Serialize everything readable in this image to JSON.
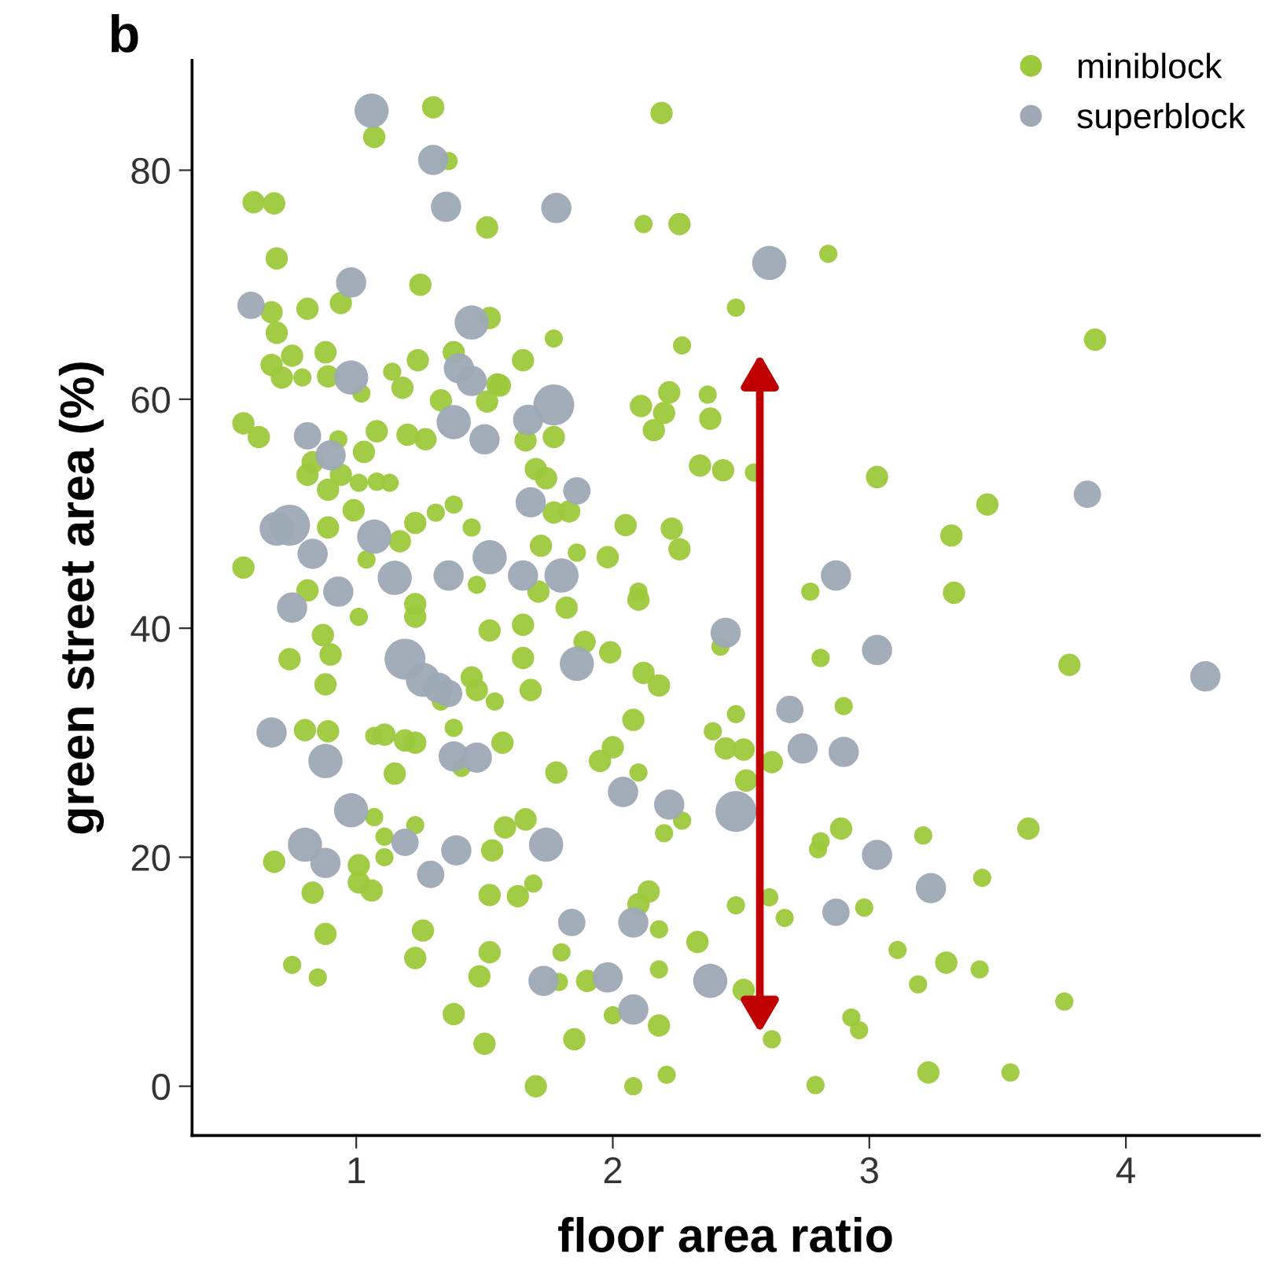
{
  "chart_data": {
    "type": "bubble",
    "xlabel": "floor area ratio",
    "ylabel": "green street area (%)",
    "annotations": [
      "b"
    ],
    "xlim": [
      0.36,
      4.52
    ],
    "ylim": [
      -4.3,
      89.6
    ],
    "xticks": [
      1,
      2,
      3,
      4
    ],
    "yticks": [
      0,
      20,
      40,
      60,
      80
    ],
    "grid": false,
    "legend": "top right",
    "relative": false,
    "series": [
      {
        "name": "miniblock",
        "color": "#9dc93c",
        "x": [
          1.3,
          1.07,
          1.36,
          0.6,
          0.68,
          1.51,
          0.69,
          1.25,
          0.67,
          0.81,
          0.94,
          0.69,
          1.52,
          0.75,
          0.88,
          0.67,
          0.71,
          0.79,
          0.89,
          1.02,
          1.14,
          1.18,
          1.24,
          1.38,
          1.55,
          1.51,
          1.33,
          1.27,
          1.2,
          1.08,
          0.93,
          0.83,
          0.81,
          0.94,
          0.89,
          1.03,
          1.01,
          1.08,
          1.13,
          0.56,
          0.62,
          0.89,
          0.99,
          1.17,
          1.23,
          1.31,
          1.38,
          1.45,
          0.56,
          1.47,
          0.81,
          1.04,
          1.01,
          1.23,
          1.23,
          0.87,
          0.9,
          0.74,
          0.88,
          1.52,
          1.45,
          1.47,
          1.54,
          1.33,
          0.8,
          0.89,
          1.07,
          1.11,
          1.19,
          1.23,
          1.38,
          1.41,
          1.57,
          1.15,
          1.07,
          1.23,
          1.11,
          0.68,
          1.01,
          1.11,
          1.53,
          1.01,
          1.06,
          0.83,
          1.52,
          0.88,
          1.26,
          1.23,
          1.52,
          1.48,
          0.75,
          0.85,
          1.38,
          1.5,
          2.19,
          2.12,
          2.26,
          2.84,
          2.48,
          1.77,
          2.27,
          1.65,
          1.56,
          1.66,
          1.77,
          2.22,
          2.37,
          2.11,
          2.2,
          2.16,
          2.38,
          1.7,
          1.74,
          1.77,
          1.83,
          2.34,
          2.43,
          2.55,
          2.05,
          2.23,
          2.26,
          1.72,
          1.86,
          1.98,
          2.1,
          2.77,
          1.71,
          1.82,
          2.1,
          1.65,
          1.89,
          1.99,
          2.42,
          1.65,
          2.12,
          2.18,
          2.81,
          1.68,
          2.08,
          2.48,
          2.39,
          2.44,
          2.51,
          2.62,
          1.95,
          2.0,
          2.1,
          1.78,
          2.52,
          2.27,
          2.2,
          1.58,
          1.66,
          2.8,
          1.63,
          1.69,
          2.14,
          2.1,
          2.18,
          2.48,
          2.61,
          2.67,
          2.33,
          1.8,
          1.9,
          1.79,
          2.18,
          2.51,
          2.0,
          2.18,
          1.85,
          2.62,
          1.7,
          2.08,
          2.21,
          2.79,
          3.88,
          3.03,
          3.46,
          3.32,
          3.33,
          3.78,
          2.9,
          2.89,
          2.81,
          3.21,
          3.62,
          3.44,
          2.98,
          3.11,
          3.3,
          3.19,
          3.43,
          3.76,
          2.93,
          2.96,
          3.23,
          3.55
        ],
        "values": [
          85.5,
          82.9,
          80.8,
          77.2,
          77.1,
          75.0,
          72.3,
          70.0,
          67.6,
          67.9,
          68.4,
          65.8,
          67.1,
          63.8,
          64.1,
          63.0,
          61.9,
          61.9,
          62.0,
          60.5,
          62.4,
          61.0,
          63.4,
          64.1,
          61.3,
          59.8,
          59.9,
          56.5,
          56.9,
          57.2,
          56.5,
          54.5,
          53.4,
          53.4,
          52.1,
          55.4,
          52.7,
          52.8,
          52.7,
          57.9,
          56.7,
          48.8,
          50.3,
          47.6,
          49.2,
          50.1,
          50.8,
          48.8,
          45.3,
          43.8,
          43.3,
          46.0,
          41.0,
          42.1,
          41.0,
          39.4,
          37.7,
          37.3,
          35.1,
          39.8,
          35.7,
          34.6,
          33.6,
          33.6,
          31.1,
          31.0,
          30.6,
          30.7,
          30.2,
          30.0,
          31.3,
          27.8,
          30.0,
          27.3,
          23.5,
          22.8,
          21.8,
          19.6,
          19.3,
          20.0,
          20.6,
          17.8,
          17.1,
          16.9,
          16.7,
          13.3,
          13.6,
          11.2,
          11.7,
          9.6,
          10.6,
          9.5,
          6.3,
          3.7,
          85.0,
          75.3,
          75.3,
          72.7,
          68.0,
          65.3,
          64.7,
          63.4,
          61.2,
          56.4,
          56.7,
          60.6,
          60.4,
          59.4,
          58.8,
          57.3,
          58.3,
          53.9,
          53.1,
          50.1,
          50.2,
          54.2,
          53.8,
          53.6,
          49.0,
          48.7,
          46.9,
          47.2,
          46.6,
          46.2,
          43.2,
          43.2,
          43.2,
          41.8,
          42.5,
          40.3,
          38.8,
          37.9,
          38.4,
          37.4,
          36.1,
          35.0,
          37.4,
          34.6,
          32.0,
          32.5,
          31.0,
          29.5,
          29.4,
          28.3,
          28.4,
          29.6,
          27.4,
          27.4,
          26.7,
          23.2,
          22.1,
          22.6,
          23.3,
          20.7,
          16.6,
          17.7,
          17.0,
          15.9,
          13.7,
          15.8,
          16.5,
          14.7,
          12.6,
          11.7,
          9.2,
          9.1,
          10.2,
          8.4,
          6.2,
          5.3,
          4.1,
          4.1,
          0.0,
          0.0,
          1.0,
          0.1,
          65.2,
          53.2,
          50.8,
          48.1,
          43.1,
          36.8,
          33.2,
          22.5,
          21.4,
          21.9,
          22.5,
          18.2,
          15.6,
          11.9,
          10.8,
          8.9,
          10.2,
          7.4,
          6.0,
          4.9,
          1.2,
          1.2
        ],
        "sizes": [
          0.3,
          0.3,
          0.2,
          0.3,
          0.3,
          0.3,
          0.3,
          0.3,
          0.3,
          0.3,
          0.3,
          0.3,
          0.3,
          0.3,
          0.3,
          0.3,
          0.3,
          0.2,
          0.3,
          0.2,
          0.2,
          0.3,
          0.3,
          0.3,
          0.3,
          0.3,
          0.3,
          0.3,
          0.3,
          0.3,
          0.2,
          0.3,
          0.3,
          0.3,
          0.3,
          0.3,
          0.2,
          0.2,
          0.2,
          0.3,
          0.3,
          0.3,
          0.3,
          0.3,
          0.3,
          0.2,
          0.2,
          0.2,
          0.3,
          0.2,
          0.3,
          0.2,
          0.2,
          0.3,
          0.3,
          0.3,
          0.3,
          0.3,
          0.3,
          0.3,
          0.3,
          0.3,
          0.2,
          0.2,
          0.3,
          0.3,
          0.2,
          0.3,
          0.3,
          0.3,
          0.2,
          0.2,
          0.3,
          0.3,
          0.2,
          0.2,
          0.2,
          0.3,
          0.3,
          0.2,
          0.3,
          0.3,
          0.3,
          0.3,
          0.3,
          0.3,
          0.3,
          0.3,
          0.3,
          0.3,
          0.2,
          0.2,
          0.3,
          0.3,
          0.3,
          0.2,
          0.3,
          0.2,
          0.2,
          0.2,
          0.2,
          0.3,
          0.3,
          0.3,
          0.3,
          0.3,
          0.2,
          0.3,
          0.3,
          0.3,
          0.3,
          0.3,
          0.3,
          0.3,
          0.3,
          0.3,
          0.3,
          0.2,
          0.3,
          0.3,
          0.3,
          0.3,
          0.2,
          0.3,
          0.2,
          0.2,
          0.3,
          0.3,
          0.3,
          0.3,
          0.3,
          0.3,
          0.2,
          0.3,
          0.3,
          0.3,
          0.2,
          0.3,
          0.3,
          0.2,
          0.2,
          0.3,
          0.3,
          0.3,
          0.3,
          0.3,
          0.2,
          0.3,
          0.3,
          0.2,
          0.2,
          0.3,
          0.3,
          0.2,
          0.3,
          0.2,
          0.3,
          0.3,
          0.2,
          0.2,
          0.2,
          0.2,
          0.3,
          0.2,
          0.3,
          0.2,
          0.2,
          0.3,
          0.2,
          0.3,
          0.3,
          0.2,
          0.3,
          0.2,
          0.2,
          0.2,
          0.3,
          0.3,
          0.3,
          0.3,
          0.3,
          0.3,
          0.2,
          0.3,
          0.2,
          0.2,
          0.3,
          0.2,
          0.2,
          0.2,
          0.3,
          0.2,
          0.2,
          0.2,
          0.2,
          0.2,
          0.3,
          0.2
        ]
      },
      {
        "name": "superblock",
        "color": "#9ea9b5",
        "x": [
          1.06,
          1.3,
          1.35,
          0.98,
          0.59,
          1.45,
          0.98,
          1.4,
          1.45,
          1.38,
          1.5,
          0.81,
          0.9,
          0.74,
          0.69,
          0.83,
          1.07,
          1.52,
          1.15,
          1.36,
          0.93,
          0.75,
          1.19,
          1.26,
          1.32,
          1.36,
          0.67,
          1.38,
          1.47,
          0.88,
          0.98,
          1.19,
          0.8,
          0.88,
          1.29,
          1.39,
          1.78,
          2.61,
          1.77,
          1.67,
          1.68,
          1.86,
          1.65,
          1.8,
          2.44,
          1.86,
          2.69,
          2.74,
          2.04,
          2.22,
          2.48,
          1.74,
          1.84,
          2.08,
          1.73,
          1.98,
          2.38,
          2.08,
          3.85,
          2.87,
          3.03,
          4.31,
          2.9,
          3.03,
          3.24,
          2.87
        ],
        "values": [
          85.2,
          80.9,
          76.8,
          70.2,
          68.2,
          66.7,
          61.9,
          62.7,
          61.6,
          58.0,
          56.5,
          56.8,
          55.1,
          49.0,
          48.7,
          46.5,
          48.0,
          46.2,
          44.4,
          44.6,
          43.2,
          41.8,
          37.3,
          35.5,
          34.8,
          34.3,
          30.9,
          28.8,
          28.7,
          28.4,
          24.1,
          21.3,
          21.1,
          19.5,
          18.5,
          20.6,
          76.7,
          71.9,
          59.5,
          58.2,
          51.0,
          52.0,
          44.6,
          44.6,
          39.6,
          36.9,
          32.9,
          29.5,
          25.7,
          24.6,
          24.0,
          21.1,
          14.3,
          14.3,
          9.2,
          9.5,
          9.2,
          6.7,
          51.7,
          44.6,
          38.1,
          35.8,
          29.2,
          20.2,
          17.3,
          15.2
        ],
        "sizes": [
          0.7,
          0.55,
          0.55,
          0.55,
          0.45,
          0.7,
          0.7,
          0.55,
          0.55,
          0.7,
          0.55,
          0.45,
          0.55,
          1.0,
          0.7,
          0.55,
          0.7,
          0.7,
          0.7,
          0.55,
          0.55,
          0.55,
          1.0,
          0.7,
          0.55,
          0.45,
          0.55,
          0.55,
          0.55,
          0.7,
          0.7,
          0.45,
          0.7,
          0.55,
          0.45,
          0.55,
          0.55,
          0.7,
          1.0,
          0.55,
          0.55,
          0.45,
          0.55,
          0.7,
          0.55,
          0.7,
          0.45,
          0.55,
          0.55,
          0.55,
          1.0,
          0.7,
          0.45,
          0.55,
          0.55,
          0.55,
          0.7,
          0.55,
          0.45,
          0.55,
          0.55,
          0.55,
          0.55,
          0.55,
          0.55,
          0.45
        ]
      }
    ]
  }
}
